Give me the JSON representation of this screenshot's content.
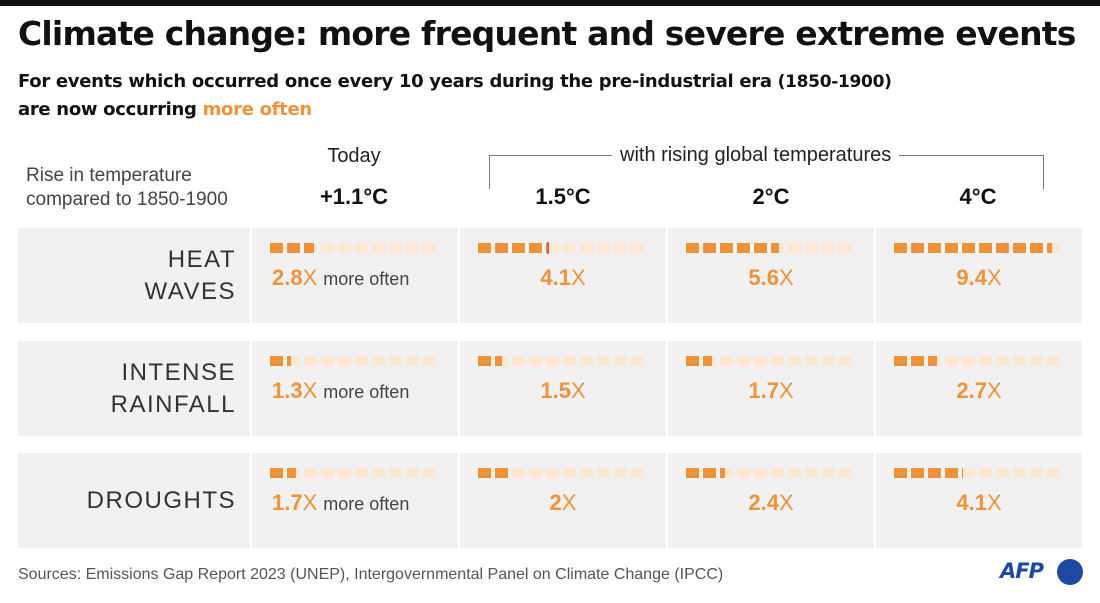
{
  "header": {
    "title": "Climate change: more frequent and severe extreme events",
    "subtitle_1": "For events which occurred once every 10 years",
    "subtitle_2": "during the pre-industrial era",
    "subtitle_3": "(1850-1900)",
    "subtitle_4": "are now occurring",
    "subtitle_accent": "more often"
  },
  "columns": {
    "rise_label_1": "Rise in temperature",
    "rise_label_2": "compared to 1850-1900",
    "today_label": "Today",
    "group_label": "with rising global temperatures",
    "temps": [
      "+1.1°C",
      "1.5°C",
      "2°C",
      "4°C"
    ]
  },
  "chart_data": {
    "type": "table",
    "columns": [
      "+1.1°C",
      "1.5°C",
      "2°C",
      "4°C"
    ],
    "unit_symbol": "X",
    "suffix": "more often",
    "squares_per_cell": 10,
    "rows": [
      {
        "name_1": "HEAT",
        "name_2": "WAVES",
        "values": [
          2.8,
          4.1,
          5.6,
          9.4
        ],
        "labels": [
          "2.8",
          "4.1",
          "5.6",
          "9.4"
        ]
      },
      {
        "name_1": "INTENSE",
        "name_2": "RAINFALL",
        "values": [
          1.3,
          1.5,
          1.7,
          2.7
        ],
        "labels": [
          "1.3",
          "1.5",
          "1.7",
          "2.7"
        ]
      },
      {
        "name_1": "DROUGHTS",
        "name_2": "",
        "values": [
          1.7,
          2,
          2.4,
          4.1
        ],
        "labels": [
          "1.7",
          "2",
          "2.4",
          "4.1"
        ]
      }
    ],
    "colors": {
      "filled": "#f0923a",
      "empty": "#fde8d2",
      "marker": "#e0584f"
    }
  },
  "footer": {
    "source": "Sources: Emissions Gap Report 2023 (UNEP), Intergovernmental Panel on Climate Change (IPCC)",
    "logo_text": "AFP"
  }
}
